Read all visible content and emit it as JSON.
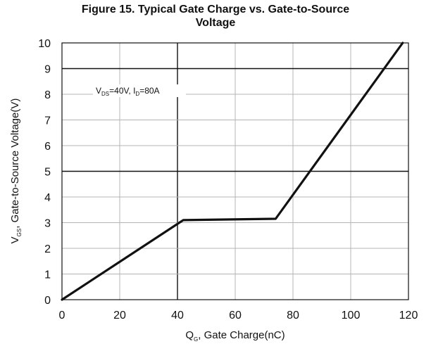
{
  "chart_data": {
    "type": "line",
    "title_line1": "Figure 15. Typical Gate Charge vs. Gate-to-Source",
    "title_line2": "Voltage",
    "xlabel": {
      "main": "Q",
      "sub": "G",
      "rest": ", Gate Charge(nC)"
    },
    "ylabel": {
      "main": "V",
      "sub": "GS",
      "rest": ", Gate-to-Source Voltage(V)"
    },
    "annotation": {
      "p1": "V",
      "p1_sub": "DS",
      "p2": "=40V, I",
      "p2_sub": "D",
      "p3": "=80A"
    },
    "xlim": [
      0,
      120
    ],
    "ylim": [
      0,
      10
    ],
    "x_ticks": [
      "0",
      "20",
      "40",
      "60",
      "80",
      "100",
      "120"
    ],
    "y_ticks": [
      "0",
      "1",
      "2",
      "3",
      "4",
      "5",
      "6",
      "7",
      "8",
      "9",
      "10"
    ],
    "grid": true,
    "series": [
      {
        "color": "#111111",
        "points": [
          [
            0,
            0
          ],
          [
            42,
            3.1
          ],
          [
            74,
            3.15
          ],
          [
            118,
            10
          ]
        ]
      }
    ]
  }
}
